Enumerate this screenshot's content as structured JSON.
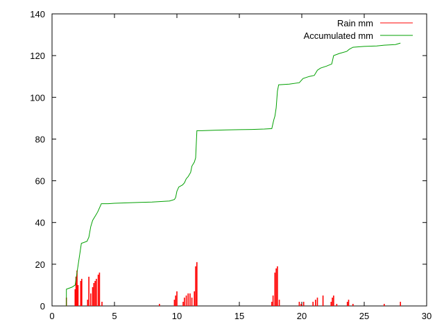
{
  "chart_data": {
    "type": "line",
    "title": "",
    "xlabel": "",
    "ylabel": "",
    "xlim": [
      0,
      30
    ],
    "ylim": [
      0,
      140
    ],
    "x_ticks": [
      0,
      5,
      10,
      15,
      20,
      25,
      30
    ],
    "y_ticks": [
      0,
      20,
      40,
      60,
      80,
      100,
      120,
      140
    ],
    "grid": false,
    "legend_position": "top-right",
    "series": [
      {
        "name": "Rain mm",
        "style": "impulses",
        "color": "#ff0000",
        "points": [
          [
            1.15,
            4
          ],
          [
            1.85,
            8
          ],
          [
            1.92,
            14
          ],
          [
            2.0,
            17
          ],
          [
            2.08,
            10
          ],
          [
            2.3,
            12
          ],
          [
            2.38,
            13
          ],
          [
            2.85,
            3
          ],
          [
            2.95,
            14
          ],
          [
            3.1,
            6
          ],
          [
            3.25,
            9
          ],
          [
            3.35,
            11
          ],
          [
            3.45,
            12
          ],
          [
            3.55,
            13
          ],
          [
            3.7,
            15
          ],
          [
            3.8,
            16
          ],
          [
            4.0,
            2
          ],
          [
            8.6,
            1
          ],
          [
            9.8,
            3
          ],
          [
            9.9,
            5
          ],
          [
            10.0,
            7
          ],
          [
            10.5,
            2
          ],
          [
            10.6,
            4
          ],
          [
            10.75,
            5
          ],
          [
            10.9,
            6
          ],
          [
            11.05,
            6
          ],
          [
            11.2,
            4
          ],
          [
            11.4,
            7
          ],
          [
            11.5,
            19
          ],
          [
            11.6,
            21
          ],
          [
            17.6,
            2
          ],
          [
            17.7,
            5
          ],
          [
            17.85,
            16
          ],
          [
            17.95,
            18
          ],
          [
            18.05,
            19
          ],
          [
            18.2,
            3
          ],
          [
            19.8,
            2
          ],
          [
            19.95,
            1
          ],
          [
            20.15,
            2
          ],
          [
            20.9,
            2
          ],
          [
            21.1,
            3
          ],
          [
            21.25,
            4
          ],
          [
            21.7,
            5
          ],
          [
            22.35,
            2
          ],
          [
            22.45,
            4
          ],
          [
            22.55,
            5
          ],
          [
            22.8,
            1
          ],
          [
            23.65,
            2
          ],
          [
            23.75,
            3
          ],
          [
            24.1,
            1
          ],
          [
            26.6,
            1
          ],
          [
            27.9,
            2
          ]
        ]
      },
      {
        "name": "Accumulated mm",
        "style": "line",
        "color": "#00a000",
        "points": [
          [
            1.15,
            0
          ],
          [
            1.15,
            8
          ],
          [
            1.6,
            9
          ],
          [
            1.85,
            10
          ],
          [
            1.95,
            14
          ],
          [
            2.05,
            18
          ],
          [
            2.2,
            24
          ],
          [
            2.35,
            30
          ],
          [
            2.8,
            31
          ],
          [
            2.95,
            33
          ],
          [
            3.1,
            38
          ],
          [
            3.25,
            41
          ],
          [
            3.45,
            43
          ],
          [
            3.65,
            45
          ],
          [
            3.8,
            47
          ],
          [
            3.95,
            49
          ],
          [
            4.5,
            49
          ],
          [
            5,
            49.2
          ],
          [
            6,
            49.4
          ],
          [
            7,
            49.6
          ],
          [
            8,
            49.8
          ],
          [
            8.6,
            50
          ],
          [
            9.4,
            50.3
          ],
          [
            9.8,
            51
          ],
          [
            9.9,
            52
          ],
          [
            10.0,
            55
          ],
          [
            10.15,
            57
          ],
          [
            10.45,
            58
          ],
          [
            10.6,
            59
          ],
          [
            10.75,
            61
          ],
          [
            10.9,
            62
          ],
          [
            11.1,
            64
          ],
          [
            11.2,
            67
          ],
          [
            11.4,
            69
          ],
          [
            11.5,
            71
          ],
          [
            11.6,
            84
          ],
          [
            12,
            84
          ],
          [
            13,
            84.2
          ],
          [
            14,
            84.4
          ],
          [
            15,
            84.5
          ],
          [
            16,
            84.6
          ],
          [
            17,
            84.8
          ],
          [
            17.6,
            85
          ],
          [
            17.75,
            89
          ],
          [
            17.85,
            91
          ],
          [
            17.95,
            95
          ],
          [
            18.05,
            103
          ],
          [
            18.15,
            106
          ],
          [
            19,
            106.3
          ],
          [
            19.8,
            107
          ],
          [
            20.1,
            109
          ],
          [
            20.6,
            110
          ],
          [
            21.0,
            110.5
          ],
          [
            21.25,
            113
          ],
          [
            21.5,
            114
          ],
          [
            22.0,
            115
          ],
          [
            22.4,
            116
          ],
          [
            22.55,
            120
          ],
          [
            23,
            121
          ],
          [
            23.6,
            122
          ],
          [
            23.8,
            123
          ],
          [
            24.1,
            124
          ],
          [
            25,
            124.4
          ],
          [
            26,
            124.6
          ],
          [
            26.6,
            125
          ],
          [
            27.5,
            125.3
          ],
          [
            27.9,
            126
          ]
        ]
      }
    ]
  }
}
